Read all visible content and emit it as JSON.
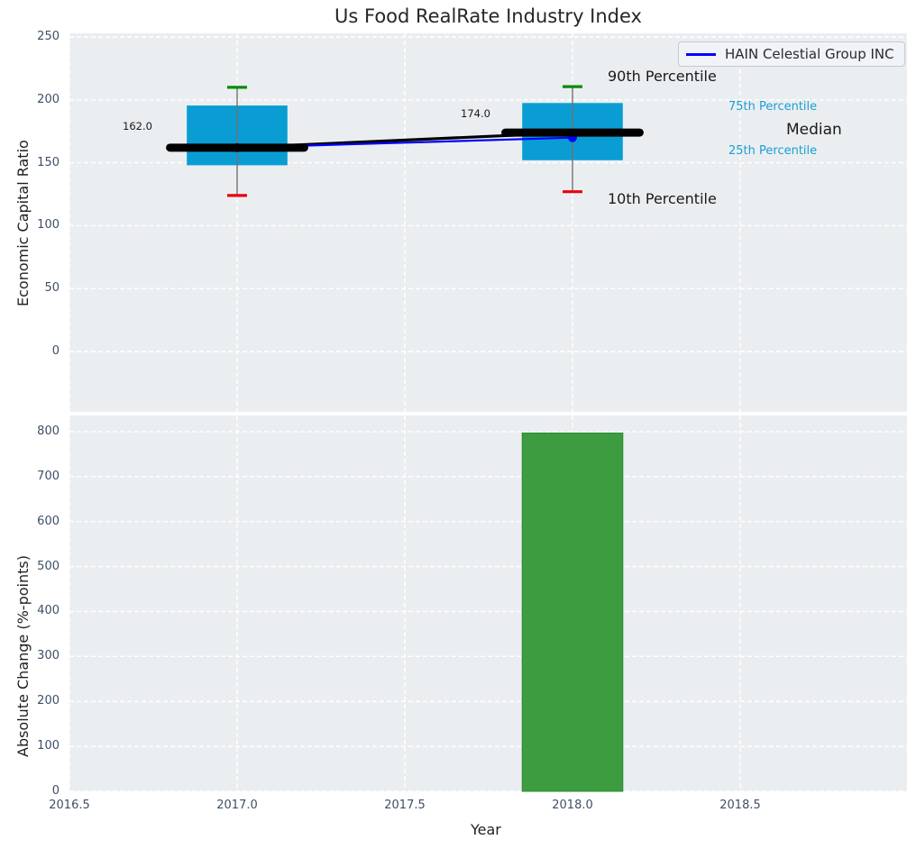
{
  "title": "Us Food RealRate Industry Index",
  "legend": {
    "label": "HAIN Celestial Group INC"
  },
  "labels": {
    "p90": "90th Percentile",
    "p75": "75th Percentile",
    "median": "Median",
    "p25": "25th Percentile",
    "p10": "10th Percentile"
  },
  "colors": {
    "box": "#0a9dd4",
    "bar": "#3d9c40",
    "bar_edge": "#2f8c33",
    "line": "#0000ff",
    "median_line": "#000000",
    "cap_top": "#068c06",
    "cap_bottom": "#e8000a",
    "whisker": "#707070",
    "plot_bg": "#ebeef1",
    "grid": "#ffffff",
    "tick_text": "#3e4f66",
    "accent_text": "#1a9fd4"
  },
  "chart_data": [
    {
      "type": "box",
      "title": "Us Food RealRate Industry Index",
      "ylabel": "Economic Capital Ratio",
      "xlim": [
        2016.5,
        2019.0
      ],
      "ylim": [
        -48,
        253
      ],
      "yticks": [
        0,
        50,
        100,
        150,
        200,
        250
      ],
      "xticks": [
        2016.5,
        2017.0,
        2017.5,
        2018.0,
        2018.5
      ],
      "xtick_labels": [
        "2016.5",
        "2017.0",
        "2017.5",
        "2018.0",
        "2018.5"
      ],
      "grid": true,
      "legend_position": "upper right",
      "box_width_years": 0.3,
      "median_bar_halfwidth_years": 0.2,
      "boxes": [
        {
          "x": 2017,
          "p10": 124,
          "p25": 148,
          "median": 162,
          "p75": 195.5,
          "p90": 210,
          "label": "162.0"
        },
        {
          "x": 2018,
          "p10": 127,
          "p25": 152,
          "median": 174,
          "p75": 197.5,
          "p90": 210.5,
          "label": "174.0"
        }
      ],
      "series": [
        {
          "name": "HAIN Celestial Group INC",
          "x": [
            2017,
            2018
          ],
          "y": [
            162,
            170
          ]
        }
      ]
    },
    {
      "type": "bar",
      "ylabel": "Absolute Change (%-points)",
      "xlabel": "Year",
      "xlim": [
        2016.5,
        2019.0
      ],
      "ylim": [
        0,
        836
      ],
      "yticks": [
        0,
        100,
        200,
        300,
        400,
        500,
        600,
        700,
        800
      ],
      "xticks": [
        2016.5,
        2017.0,
        2017.5,
        2018.0,
        2018.5
      ],
      "xtick_labels": [
        "2016.5",
        "2017.0",
        "2017.5",
        "2018.0",
        "2018.5"
      ],
      "grid": true,
      "x": [
        2018
      ],
      "values": [
        797
      ],
      "bar_width_years": 0.3
    }
  ]
}
